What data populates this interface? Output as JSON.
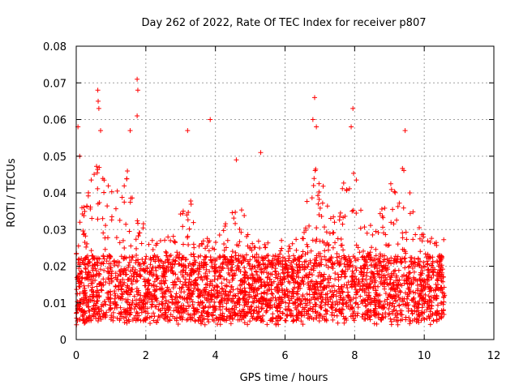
{
  "chart_data": {
    "type": "scatter",
    "title": "Day 262 of 2022, Rate Of TEC Index for receiver p807",
    "xlabel": "GPS time / hours",
    "ylabel": "ROTI / TECUs",
    "xlim": [
      0,
      12
    ],
    "ylim": [
      0,
      0.08
    ],
    "x_ticks": [
      "0",
      "2",
      "4",
      "6",
      "8",
      "10",
      "12"
    ],
    "y_ticks": [
      "0",
      "0.01",
      "0.02",
      "0.03",
      "0.04",
      "0.05",
      "0.06",
      "0.07",
      "0.08"
    ],
    "grid": true,
    "marker": "+",
    "color": "#ff0000",
    "x_data_range": [
      0,
      10.6
    ],
    "outliers": [
      {
        "x": 0.05,
        "y": 0.058
      },
      {
        "x": 0.1,
        "y": 0.05
      },
      {
        "x": 0.62,
        "y": 0.068
      },
      {
        "x": 0.63,
        "y": 0.065
      },
      {
        "x": 0.65,
        "y": 0.063
      },
      {
        "x": 0.7,
        "y": 0.057
      },
      {
        "x": 1.55,
        "y": 0.057
      },
      {
        "x": 1.75,
        "y": 0.071
      },
      {
        "x": 1.77,
        "y": 0.068
      },
      {
        "x": 1.75,
        "y": 0.061
      },
      {
        "x": 3.2,
        "y": 0.057
      },
      {
        "x": 3.85,
        "y": 0.06
      },
      {
        "x": 6.85,
        "y": 0.066
      },
      {
        "x": 6.8,
        "y": 0.06
      },
      {
        "x": 6.9,
        "y": 0.058
      },
      {
        "x": 7.95,
        "y": 0.063
      },
      {
        "x": 7.9,
        "y": 0.058
      },
      {
        "x": 9.45,
        "y": 0.057
      },
      {
        "x": 5.3,
        "y": 0.051
      },
      {
        "x": 4.6,
        "y": 0.049
      }
    ]
  }
}
